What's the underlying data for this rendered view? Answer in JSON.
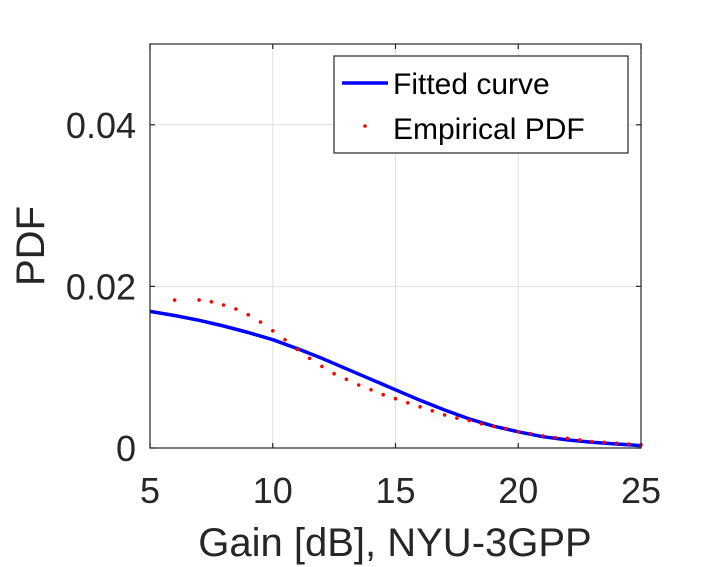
{
  "chart_data": {
    "type": "line",
    "xlabel": "Gain [dB], NYU-3GPP",
    "ylabel": "PDF",
    "xlim": [
      5,
      25
    ],
    "ylim": [
      0,
      0.05
    ],
    "xticks": [
      5,
      10,
      15,
      20,
      25
    ],
    "xtick_labels": [
      "5",
      "10",
      "15",
      "20",
      "25"
    ],
    "yticks": [
      0,
      0.02,
      0.04
    ],
    "ytick_labels": [
      "0",
      "0.02",
      "0.04"
    ],
    "grid": true,
    "legend_position": "top-right",
    "series": [
      {
        "name": "Fitted curve",
        "style": "solid-line",
        "color": "#0000ff",
        "x": [
          5,
          6,
          7,
          8,
          9,
          10,
          11,
          12,
          13,
          14,
          15,
          16,
          17,
          18,
          19,
          20,
          21,
          22,
          23,
          24,
          25
        ],
        "y": [
          0.0169,
          0.0164,
          0.0158,
          0.0151,
          0.0143,
          0.0134,
          0.0123,
          0.0111,
          0.0098,
          0.0085,
          0.0072,
          0.0059,
          0.0047,
          0.0036,
          0.0027,
          0.002,
          0.0014,
          0.001,
          0.0007,
          0.0005,
          0.0003
        ]
      },
      {
        "name": "Empirical PDF",
        "style": "dots",
        "color": "#ff0000",
        "x": [
          6,
          7,
          7.5,
          8,
          8.5,
          9,
          9.5,
          10,
          10.5,
          11,
          11.5,
          12,
          12.5,
          13,
          13.5,
          14,
          14.5,
          15,
          15.5,
          16,
          16.5,
          17,
          17.5,
          18,
          18.5,
          19,
          19.5,
          20,
          20.5,
          21,
          21.5,
          22,
          22.5,
          23,
          23.5,
          24,
          24.5,
          25
        ],
        "y": [
          0.0183,
          0.0183,
          0.0181,
          0.0177,
          0.0172,
          0.0165,
          0.0156,
          0.0145,
          0.0134,
          0.0122,
          0.0111,
          0.0101,
          0.0092,
          0.0085,
          0.0078,
          0.0072,
          0.0066,
          0.0061,
          0.0056,
          0.0051,
          0.0046,
          0.0041,
          0.0037,
          0.0034,
          0.003,
          0.0027,
          0.0024,
          0.002,
          0.0018,
          0.0015,
          0.0013,
          0.0012,
          0.001,
          0.0008,
          0.0007,
          0.0006,
          0.0005,
          0.0004
        ]
      }
    ]
  }
}
